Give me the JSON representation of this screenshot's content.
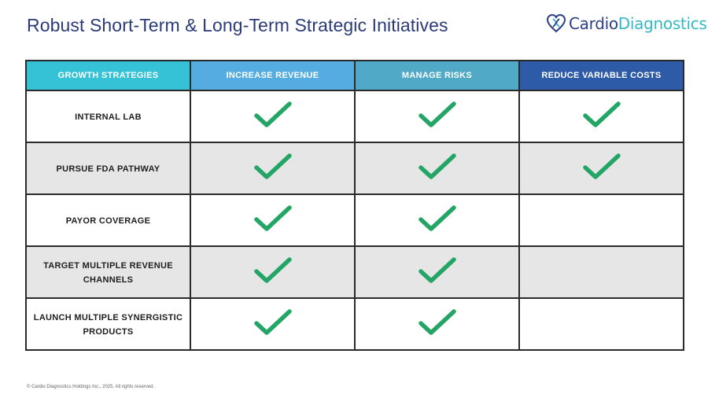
{
  "slide": {
    "title": "Robust Short-Term & Long-Term Strategic Initiatives",
    "footer": "© Cardio Diagnostics Holdings Inc., 2025. All rights reserved."
  },
  "logo": {
    "text_part1": "Cardio",
    "text_part2": "Diagnostics",
    "icon": "heart-dna-icon",
    "colors": {
      "primary": "#2a3f86",
      "accent": "#35b8c4"
    }
  },
  "table": {
    "headers": [
      {
        "label": "GROWTH STRATEGIES",
        "color": "#36c2d6"
      },
      {
        "label": "INCREASE REVENUE",
        "color": "#55ace0"
      },
      {
        "label": "MANAGE RISKS",
        "color": "#4fa9c7"
      },
      {
        "label": "REDUCE VARIABLE COSTS",
        "color": "#2d5ba8"
      }
    ],
    "rows": [
      {
        "label": "INTERNAL LAB",
        "checks": [
          true,
          true,
          true
        ]
      },
      {
        "label": "PURSUE FDA PATHWAY",
        "checks": [
          true,
          true,
          true
        ]
      },
      {
        "label": "PAYOR COVERAGE",
        "checks": [
          true,
          true,
          false
        ]
      },
      {
        "label": "TARGET MULTIPLE REVENUE CHANNELS",
        "checks": [
          true,
          true,
          false
        ]
      },
      {
        "label": "LAUNCH MULTIPLE SYNERGISTIC PRODUCTS",
        "checks": [
          true,
          true,
          false
        ]
      }
    ],
    "check_icon": "checkmark-icon",
    "check_color": "#22a565",
    "row_shading": [
      "#ffffff",
      "#e6e6e6"
    ]
  }
}
